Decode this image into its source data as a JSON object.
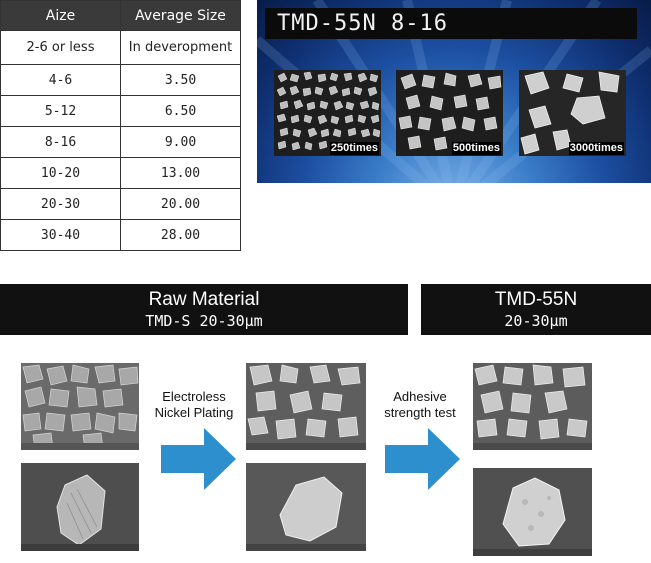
{
  "size_table": {
    "headers": [
      "Aize",
      "Average Size"
    ],
    "rows": [
      [
        "2-6 or less",
        "In deveropment"
      ],
      [
        "4-6",
        "3.50"
      ],
      [
        "5-12",
        "6.50"
      ],
      [
        "8-16",
        "9.00"
      ],
      [
        "10-20",
        "13.00"
      ],
      [
        "20-30",
        "20.00"
      ],
      [
        "30-40",
        "28.00"
      ]
    ]
  },
  "product_panel": {
    "title": "TMD-55N  8-16",
    "images": [
      {
        "magnification": "250times"
      },
      {
        "magnification": "500times"
      },
      {
        "magnification": "3000times"
      }
    ]
  },
  "process": {
    "raw_banner": {
      "line1": "Raw Material",
      "line2": "TMD-S 20-30μm"
    },
    "product_banner": {
      "line1": "TMD-55N",
      "line2": "20-30μm"
    },
    "step1": {
      "line1": "Electroless",
      "line2": "Nickel Plating"
    },
    "step2": {
      "line1": "Adhesive",
      "line2": "strength test"
    },
    "arrow_color": "#2e8fcf"
  }
}
